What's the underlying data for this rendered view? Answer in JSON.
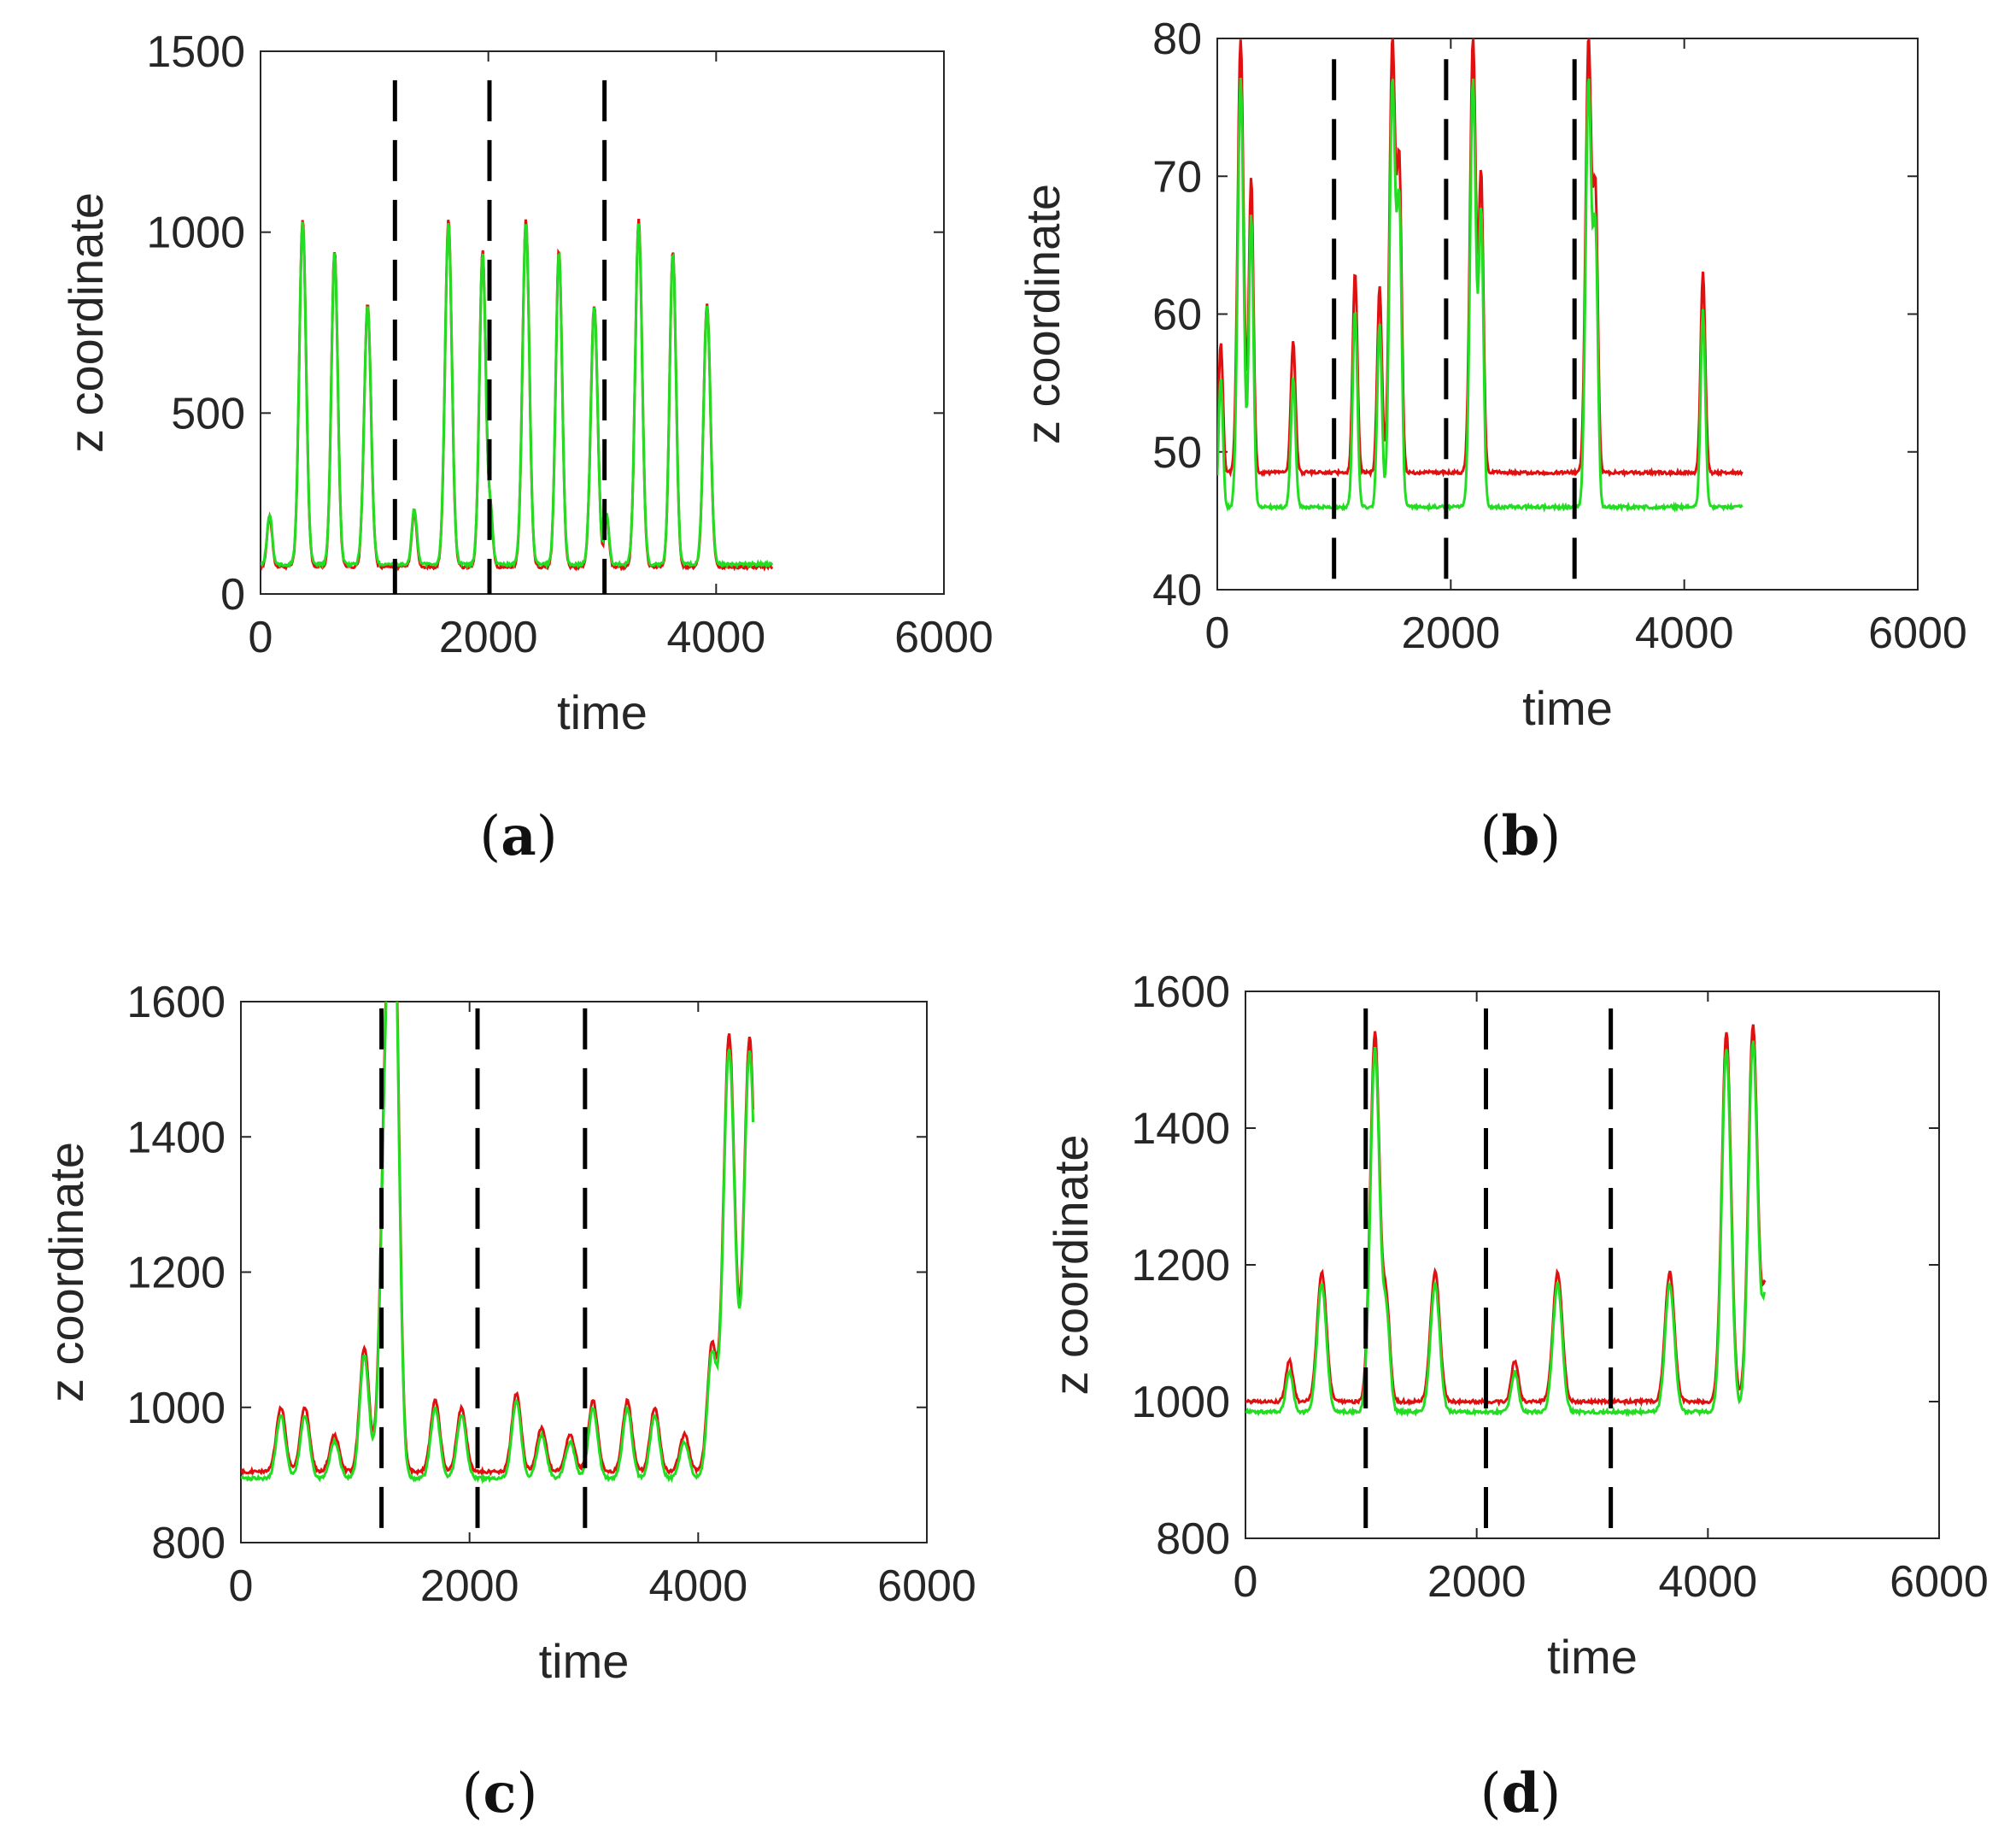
{
  "colors": {
    "series_red": "#e01010",
    "series_green": "#22dd22",
    "dashed_line": "#000000",
    "axis": "#262626"
  },
  "chart_data": [
    {
      "id": "a",
      "panel_label": "a",
      "type": "line",
      "xlabel": "time",
      "ylabel": "z coordinate",
      "xlim": [
        0,
        6000
      ],
      "ylim": [
        0,
        1500
      ],
      "xticks": [
        "0",
        "2000",
        "4000",
        "6000"
      ],
      "yticks": [
        "0",
        "500",
        "1000",
        "1500"
      ],
      "xtick_values": [
        0,
        2000,
        4000,
        6000
      ],
      "ytick_values": [
        0,
        500,
        1000,
        1500
      ],
      "vlines": [
        1180,
        2010,
        3020
      ],
      "vline_range": [
        1420,
        0
      ],
      "base_red": 75,
      "base_green": 82,
      "t_end": 4500,
      "peaks": [
        [
          80,
          215,
          22
        ],
        [
          370,
          1035,
          30
        ],
        [
          650,
          950,
          28
        ],
        [
          940,
          800,
          30
        ],
        [
          1350,
          230,
          22
        ],
        [
          1650,
          1035,
          30
        ],
        [
          1950,
          950,
          28
        ],
        [
          2020,
          215,
          20
        ],
        [
          2330,
          1035,
          30
        ],
        [
          2620,
          950,
          28
        ],
        [
          2930,
          800,
          30
        ],
        [
          3040,
          215,
          20
        ],
        [
          3320,
          1035,
          30
        ],
        [
          3620,
          950,
          28
        ],
        [
          3920,
          800,
          30
        ]
      ],
      "series": [
        {
          "name": "red",
          "color_key": "series_red"
        },
        {
          "name": "green",
          "color_key": "series_green"
        }
      ]
    },
    {
      "id": "b",
      "panel_label": "b",
      "type": "line",
      "xlabel": "time",
      "ylabel": "z coordinate",
      "xlim": [
        0,
        6000
      ],
      "ylim": [
        40,
        80
      ],
      "xticks": [
        "0",
        "2000",
        "4000",
        "6000"
      ],
      "yticks": [
        "40",
        "50",
        "60",
        "70",
        "80"
      ],
      "xtick_values": [
        0,
        2000,
        4000,
        6000
      ],
      "ytick_values": [
        40,
        50,
        60,
        70,
        80
      ],
      "vlines": [
        1000,
        1960,
        3060
      ],
      "vline_range": [
        78.5,
        40
      ],
      "base_red": 48.5,
      "base_green": 46,
      "t_end": 4500,
      "peaks": [
        [
          30,
          58,
          18
        ],
        [
          200,
          80,
          25
        ],
        [
          290,
          70,
          20
        ],
        [
          650,
          58,
          20
        ],
        [
          1180,
          63,
          20
        ],
        [
          1390,
          62,
          20
        ],
        [
          1500,
          80,
          25
        ],
        [
          1560,
          70,
          20
        ],
        [
          2190,
          80,
          25
        ],
        [
          2260,
          70,
          20
        ],
        [
          3180,
          80,
          25
        ],
        [
          3240,
          68,
          20
        ],
        [
          4160,
          63,
          20
        ]
      ],
      "series": [
        {
          "name": "red",
          "color_key": "series_red"
        },
        {
          "name": "green",
          "color_key": "series_green"
        }
      ]
    },
    {
      "id": "c",
      "panel_label": "c",
      "type": "line",
      "xlabel": "time",
      "ylabel": "z coordinate",
      "xlim": [
        0,
        6000
      ],
      "ylim": [
        800,
        1600
      ],
      "xticks": [
        "0",
        "2000",
        "4000",
        "6000"
      ],
      "yticks": [
        "800",
        "1000",
        "1200",
        "1400",
        "1600"
      ],
      "xtick_values": [
        0,
        2000,
        4000,
        6000
      ],
      "ytick_values": [
        800,
        1000,
        1200,
        1400,
        1600
      ],
      "vlines": [
        1230,
        2070,
        3010
      ],
      "vline_range": [
        1590,
        800
      ],
      "base_red": 905,
      "base_green": 895,
      "t_end": 4480,
      "peaks": [
        [
          350,
          1000,
          40
        ],
        [
          560,
          1000,
          40
        ],
        [
          820,
          960,
          40
        ],
        [
          1080,
          1090,
          40
        ],
        [
          1280,
          1550,
          50
        ],
        [
          1350,
          1520,
          40
        ],
        [
          1700,
          1010,
          40
        ],
        [
          1930,
          1000,
          40
        ],
        [
          2410,
          1020,
          40
        ],
        [
          2630,
          970,
          40
        ],
        [
          2880,
          960,
          40
        ],
        [
          3080,
          1010,
          40
        ],
        [
          3380,
          1010,
          40
        ],
        [
          3620,
          1000,
          40
        ],
        [
          3880,
          960,
          40
        ],
        [
          4120,
          1090,
          40
        ],
        [
          4270,
          1550,
          50
        ],
        [
          4450,
          1545,
          50
        ]
      ],
      "series": [
        {
          "name": "red",
          "color_key": "series_red"
        },
        {
          "name": "green",
          "color_key": "series_green"
        }
      ]
    },
    {
      "id": "d",
      "panel_label": "d",
      "type": "line",
      "xlabel": "time",
      "ylabel": "z coordinate",
      "xlim": [
        0,
        6000
      ],
      "ylim": [
        800,
        1600
      ],
      "xticks": [
        "0",
        "2000",
        "4000",
        "6000"
      ],
      "yticks": [
        "800",
        "1000",
        "1200",
        "1400",
        "1600"
      ],
      "xtick_values": [
        0,
        2000,
        4000,
        6000
      ],
      "ytick_values": [
        800,
        1000,
        1200,
        1400,
        1600
      ],
      "vlines": [
        1040,
        2080,
        3160
      ],
      "vline_range": [
        1575,
        800
      ],
      "base_red": 1000,
      "base_green": 985,
      "t_end": 4500,
      "peaks": [
        [
          380,
          1060,
          30
        ],
        [
          660,
          1190,
          40
        ],
        [
          1120,
          1540,
          40
        ],
        [
          1220,
          1140,
          30
        ],
        [
          1640,
          1190,
          40
        ],
        [
          2330,
          1060,
          30
        ],
        [
          2700,
          1190,
          40
        ],
        [
          3670,
          1190,
          40
        ],
        [
          4160,
          1540,
          40
        ],
        [
          4390,
          1550,
          40
        ],
        [
          4500,
          1160,
          30
        ]
      ],
      "series": [
        {
          "name": "red",
          "color_key": "series_red"
        },
        {
          "name": "green",
          "color_key": "series_green"
        }
      ]
    }
  ]
}
